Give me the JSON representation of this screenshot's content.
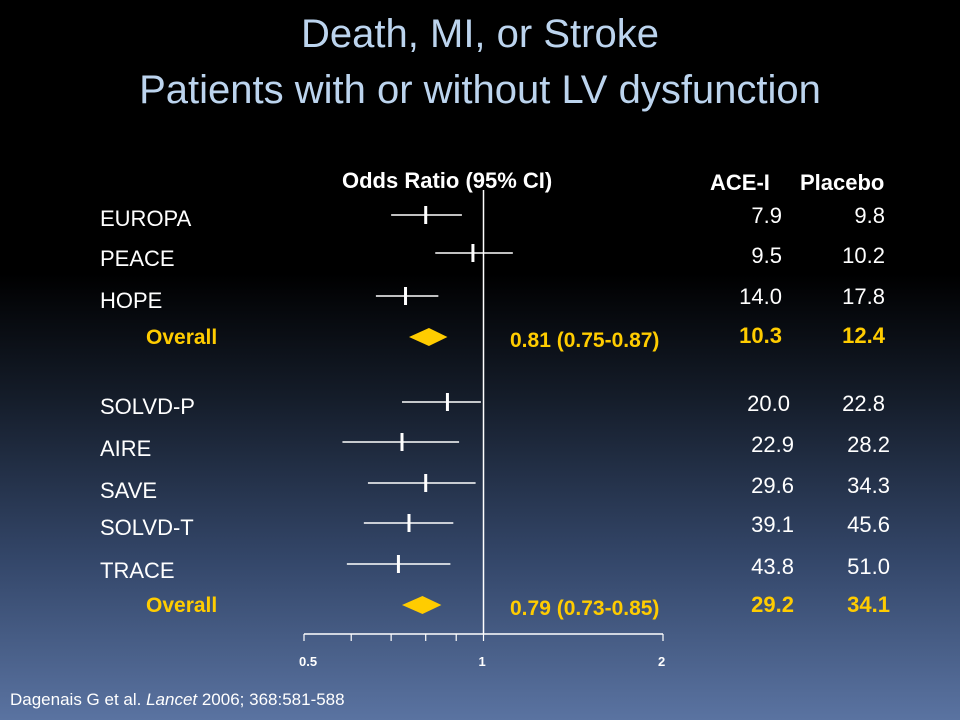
{
  "title_line1": "Death, MI, or Stroke",
  "title_line2": "Patients with or without LV dysfunction",
  "headers": {
    "odds_ratio": "Odds Ratio (95% CI)",
    "acei": "ACE-I",
    "placebo": "Placebo"
  },
  "colors": {
    "title": "#bcd4ee",
    "overall": "#ffcc00",
    "text": "#ffffff"
  },
  "chart_data": {
    "type": "forest",
    "xscale": "log2",
    "xlim": [
      0.5,
      2
    ],
    "xticks": [
      {
        "value": 0.5,
        "label": "0.5"
      },
      {
        "value": 0.6,
        "label": ""
      },
      {
        "value": 0.7,
        "label": ""
      },
      {
        "value": 0.8,
        "label": ""
      },
      {
        "value": 0.9,
        "label": ""
      },
      {
        "value": 1,
        "label": "1"
      },
      {
        "value": 2,
        "label": "2"
      }
    ],
    "reference_line": 1,
    "groups": [
      {
        "studies": [
          {
            "name": "EUROPA",
            "or": 0.8,
            "lo": 0.7,
            "hi": 0.92,
            "acei": "7.9",
            "placebo": "9.8"
          },
          {
            "name": "PEACE",
            "or": 0.96,
            "lo": 0.83,
            "hi": 1.12,
            "acei": "9.5",
            "placebo": "10.2"
          },
          {
            "name": "HOPE",
            "or": 0.74,
            "lo": 0.66,
            "hi": 0.84,
            "acei": "14.0",
            "placebo": "17.8"
          }
        ],
        "overall": {
          "label": "Overall",
          "or": 0.81,
          "lo": 0.75,
          "hi": 0.87,
          "ci_text": "0.81  (0.75-0.87)",
          "acei": "10.3",
          "placebo": "12.4"
        }
      },
      {
        "studies": [
          {
            "name": "SOLVD-P",
            "or": 0.87,
            "lo": 0.73,
            "hi": 0.99,
            "acei": "20.0",
            "placebo": "22.8"
          },
          {
            "name": "AIRE",
            "or": 0.73,
            "lo": 0.58,
            "hi": 0.91,
            "acei": "22.9",
            "placebo": "28.2"
          },
          {
            "name": "SAVE",
            "or": 0.8,
            "lo": 0.64,
            "hi": 0.97,
            "acei": "29.6",
            "placebo": "34.3"
          },
          {
            "name": "SOLVD-T",
            "or": 0.75,
            "lo": 0.63,
            "hi": 0.89,
            "acei": "39.1",
            "placebo": "45.6"
          },
          {
            "name": "TRACE",
            "or": 0.72,
            "lo": 0.59,
            "hi": 0.88,
            "acei": "43.8",
            "placebo": "51.0"
          }
        ],
        "overall": {
          "label": "Overall",
          "or": 0.79,
          "lo": 0.73,
          "hi": 0.85,
          "ci_text": "0.79  (0.73-0.85)",
          "acei": "29.2",
          "placebo": "34.1"
        }
      }
    ]
  },
  "citation": {
    "authors": "Dagenais G et al. ",
    "journal": "Lancet",
    "rest": " 2006; 368:581-588"
  }
}
